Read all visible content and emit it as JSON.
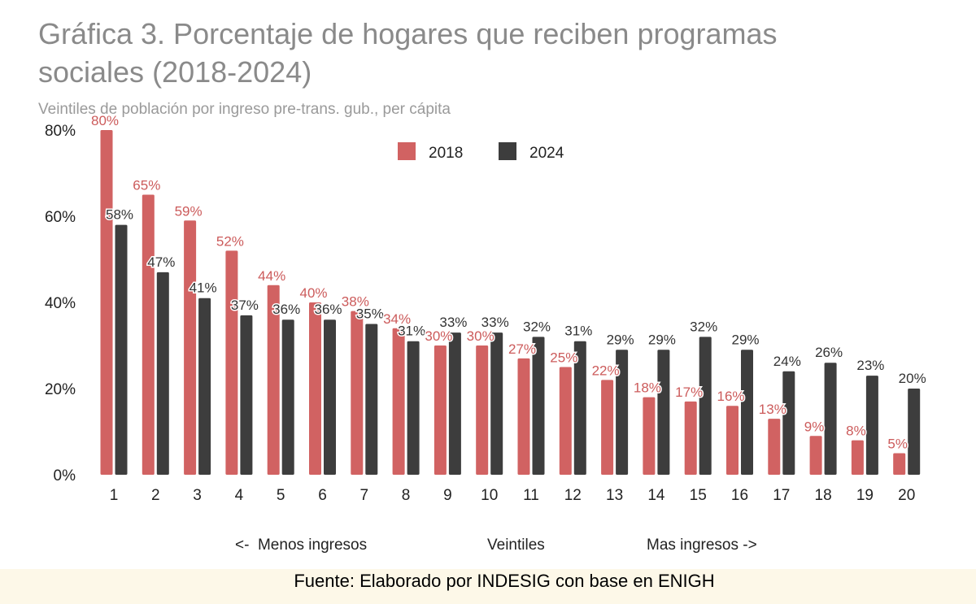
{
  "title": "Gráfica 3. Porcentaje de hogares que reciben programas sociales (2018-2024)",
  "subtitle": "Veintiles de población por ingreso pre-trans. gub., per cápita",
  "source": "Fuente: Elaborado por INDESIG con base en ENIGH",
  "colors": {
    "s2018": "#d16262",
    "s2024": "#3d3d3d"
  },
  "chart_data": {
    "type": "bar",
    "categories": [
      "1",
      "2",
      "3",
      "4",
      "5",
      "6",
      "7",
      "8",
      "9",
      "10",
      "11",
      "12",
      "13",
      "14",
      "15",
      "16",
      "17",
      "18",
      "19",
      "20"
    ],
    "series": [
      {
        "name": "2018",
        "values": [
          80,
          65,
          59,
          52,
          44,
          40,
          38,
          34,
          30,
          30,
          27,
          25,
          22,
          18,
          17,
          16,
          13,
          9,
          8,
          5
        ]
      },
      {
        "name": "2024",
        "values": [
          58,
          47,
          41,
          37,
          36,
          36,
          35,
          31,
          33,
          33,
          32,
          31,
          29,
          29,
          32,
          29,
          24,
          26,
          23,
          20
        ]
      }
    ],
    "ylim": [
      0,
      80
    ],
    "yticks": [
      0,
      20,
      40,
      60,
      80
    ],
    "ytick_labels": [
      "0%",
      "20%",
      "40%",
      "60%",
      "80%"
    ],
    "value_suffix": "%",
    "legend_position": "top-center",
    "grid": false,
    "xlabel_left": "<-  Menos ingresos",
    "xlabel_center": "Veintiles",
    "xlabel_right": "Mas ingresos ->"
  }
}
